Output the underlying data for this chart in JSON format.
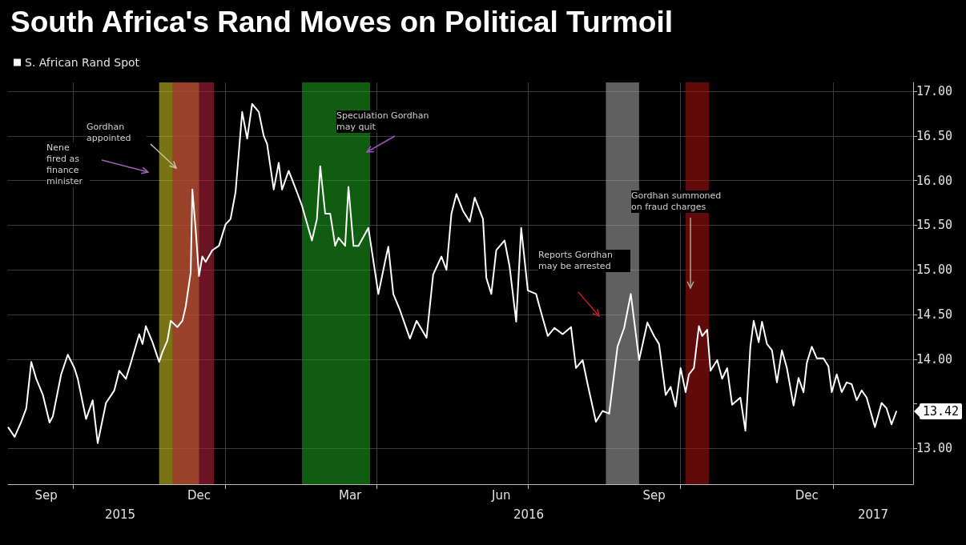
{
  "chart_data": {
    "type": "line",
    "title": "South Africa's Rand Moves on Political Turmoil",
    "x": [
      "2015-08-23",
      "2015-08-27",
      "2015-08-31",
      "2015-09-03",
      "2015-09-06",
      "2015-09-09",
      "2015-09-13",
      "2015-09-17",
      "2015-09-19",
      "2015-09-24",
      "2015-09-28",
      "2015-10-02",
      "2015-10-04",
      "2015-10-09",
      "2015-10-13",
      "2015-10-16",
      "2015-10-21",
      "2015-10-26",
      "2015-10-29",
      "2015-11-02",
      "2015-11-05",
      "2015-11-10",
      "2015-11-12",
      "2015-11-14",
      "2015-11-18",
      "2015-11-22",
      "2015-11-24",
      "2015-11-27",
      "2015-11-29",
      "2015-12-03",
      "2015-12-06",
      "2015-12-08",
      "2015-12-11",
      "2015-12-12",
      "2015-12-14",
      "2015-12-16",
      "2015-12-18",
      "2015-12-20",
      "2015-12-24",
      "2015-12-28",
      "2016-01-01",
      "2016-01-04",
      "2016-01-07",
      "2016-01-11",
      "2016-01-14",
      "2016-01-17",
      "2016-01-21",
      "2016-01-24",
      "2016-01-26",
      "2016-01-30",
      "2016-02-02",
      "2016-02-04",
      "2016-02-08",
      "2016-02-13",
      "2016-02-16",
      "2016-02-22",
      "2016-02-25",
      "2016-02-27",
      "2016-03-01",
      "2016-03-04",
      "2016-03-07",
      "2016-03-09",
      "2016-03-13",
      "2016-03-15",
      "2016-03-18",
      "2016-03-21",
      "2016-03-27",
      "2016-04-02",
      "2016-04-06",
      "2016-04-08",
      "2016-04-11",
      "2016-04-15",
      "2016-04-21",
      "2016-04-25",
      "2016-05-01",
      "2016-05-05",
      "2016-05-10",
      "2016-05-13",
      "2016-05-16",
      "2016-05-19",
      "2016-05-23",
      "2016-05-27",
      "2016-05-30",
      "2016-06-04",
      "2016-06-06",
      "2016-06-09",
      "2016-06-12",
      "2016-06-17",
      "2016-06-20",
      "2016-06-24",
      "2016-06-27",
      "2016-07-01",
      "2016-07-06",
      "2016-07-08",
      "2016-07-13",
      "2016-07-17",
      "2016-07-22",
      "2016-07-27",
      "2016-07-30",
      "2016-08-03",
      "2016-08-06",
      "2016-08-11",
      "2016-08-15",
      "2016-08-19",
      "2016-08-24",
      "2016-08-28",
      "2016-09-01",
      "2016-09-06",
      "2016-09-11",
      "2016-09-15",
      "2016-09-18",
      "2016-09-22",
      "2016-09-25",
      "2016-09-28",
      "2016-10-01",
      "2016-10-04",
      "2016-10-06",
      "2016-10-09",
      "2016-10-12",
      "2016-10-14",
      "2016-10-17",
      "2016-10-19",
      "2016-10-23",
      "2016-10-26",
      "2016-10-29",
      "2016-11-01",
      "2016-11-06",
      "2016-11-09",
      "2016-11-12",
      "2016-11-14",
      "2016-11-17",
      "2016-11-19",
      "2016-11-22",
      "2016-11-25",
      "2016-11-28",
      "2016-12-01",
      "2016-12-04",
      "2016-12-08",
      "2016-12-11",
      "2016-12-14",
      "2016-12-16",
      "2016-12-19",
      "2016-12-22",
      "2016-12-26",
      "2016-12-29",
      "2016-12-31",
      "2017-01-03",
      "2017-01-06",
      "2017-01-09",
      "2017-01-12",
      "2017-01-15",
      "2017-01-18",
      "2017-01-21",
      "2017-01-26",
      "2017-01-30",
      "2017-02-02",
      "2017-02-05",
      "2017-02-08"
    ],
    "series": [
      {
        "name": "S. African Rand Spot",
        "color": "#ffffff",
        "values": [
          13.24,
          13.13,
          13.3,
          13.45,
          13.97,
          13.78,
          13.6,
          13.29,
          13.36,
          13.83,
          14.05,
          13.9,
          13.78,
          13.33,
          13.54,
          13.06,
          13.51,
          13.65,
          13.87,
          13.78,
          13.96,
          14.28,
          14.17,
          14.37,
          14.19,
          13.97,
          14.08,
          14.21,
          14.43,
          14.36,
          14.43,
          14.59,
          14.97,
          15.9,
          15.45,
          14.93,
          15.15,
          15.09,
          15.22,
          15.27,
          15.51,
          15.57,
          15.87,
          16.77,
          16.47,
          16.86,
          16.77,
          16.5,
          16.41,
          15.9,
          16.2,
          15.9,
          16.11,
          15.87,
          15.72,
          15.33,
          15.57,
          16.16,
          15.63,
          15.63,
          15.27,
          15.36,
          15.27,
          15.93,
          15.27,
          15.27,
          15.47,
          14.73,
          15.09,
          15.26,
          14.73,
          14.55,
          14.23,
          14.43,
          14.24,
          14.95,
          15.15,
          15.0,
          15.63,
          15.85,
          15.66,
          15.54,
          15.81,
          15.57,
          14.91,
          14.73,
          15.22,
          15.33,
          15.04,
          14.42,
          15.47,
          14.77,
          14.73,
          14.59,
          14.26,
          14.35,
          14.28,
          14.36,
          13.9,
          13.99,
          13.72,
          13.3,
          13.42,
          13.39,
          14.14,
          14.35,
          14.73,
          13.99,
          14.41,
          14.26,
          14.17,
          13.6,
          13.69,
          13.47,
          13.9,
          13.63,
          13.83,
          13.9,
          14.37,
          14.26,
          14.33,
          13.87,
          13.99,
          13.78,
          13.9,
          13.49,
          13.57,
          13.2,
          14.14,
          14.43,
          14.19,
          14.42,
          14.17,
          14.1,
          13.74,
          14.1,
          13.9,
          13.48,
          13.79,
          13.63,
          13.96,
          14.14,
          14.01,
          14.01,
          13.92,
          13.63,
          13.83,
          13.63,
          13.74,
          13.72,
          13.54,
          13.65,
          13.57,
          13.24,
          13.51,
          13.45,
          13.27,
          13.42
        ]
      }
    ],
    "xlim": [
      "2015-08-23",
      "2017-02-18"
    ],
    "xticks": [
      {
        "value": "2015-09-15",
        "label": "Sep"
      },
      {
        "value": "2015-12-16",
        "label": "Dec"
      },
      {
        "value": "2016-03-16",
        "label": "Mar"
      },
      {
        "value": "2016-06-15",
        "label": "Jun"
      },
      {
        "value": "2016-09-15",
        "label": "Sep"
      },
      {
        "value": "2016-12-16",
        "label": "Dec"
      },
      {
        "value": "2015-10-01",
        "label": null
      },
      {
        "value": "2016-01-01",
        "label": null
      },
      {
        "value": "2016-04-01",
        "label": null
      },
      {
        "value": "2016-07-01",
        "label": null
      },
      {
        "value": "2016-10-01",
        "label": null
      },
      {
        "value": "2017-01-01",
        "label": null
      }
    ],
    "ylim": [
      12.6,
      17.1
    ],
    "yticks": [
      {
        "value": 13,
        "label": "13.00"
      },
      {
        "value": 13.5,
        "label": null
      },
      {
        "value": 14,
        "label": "14.00"
      },
      {
        "value": 14.5,
        "label": "14.50"
      },
      {
        "value": 15,
        "label": "15.00"
      },
      {
        "value": 15.5,
        "label": "15.50"
      },
      {
        "value": 16,
        "label": "16.00"
      },
      {
        "value": 16.5,
        "label": "16.50"
      },
      {
        "value": 17,
        "label": "17.00"
      }
    ],
    "bands": [
      {
        "axis": "x",
        "from": "2015-11-22",
        "to": "2015-12-16",
        "color": "#c8c020"
      },
      {
        "axis": "x",
        "from": "2015-11-30",
        "to": "2015-12-25",
        "color": "#b02038"
      },
      {
        "axis": "x",
        "from": "2016-02-16",
        "to": "2016-03-28",
        "color": "#1a9a1a"
      },
      {
        "axis": "x",
        "from": "2016-08-17",
        "to": "2016-09-06",
        "color": "#a0a0a0"
      },
      {
        "axis": "x",
        "from": "2016-10-04",
        "to": "2016-10-18",
        "color": "#a01010"
      }
    ],
    "annotations": [
      "Gordhan appointed",
      "Nene fired as finance minister",
      "Speculation Gordhan may quit",
      "Reports Gordhan may be arrested",
      "Gordhan summoned on fraud charges",
      {
        "text": "13.42",
        "x": "2017-02-08",
        "y": 13.42
      },
      "2015",
      "2016",
      "2017"
    ],
    "grid": true,
    "legend": "top left",
    "marker": "none",
    "line_style": "solid"
  }
}
